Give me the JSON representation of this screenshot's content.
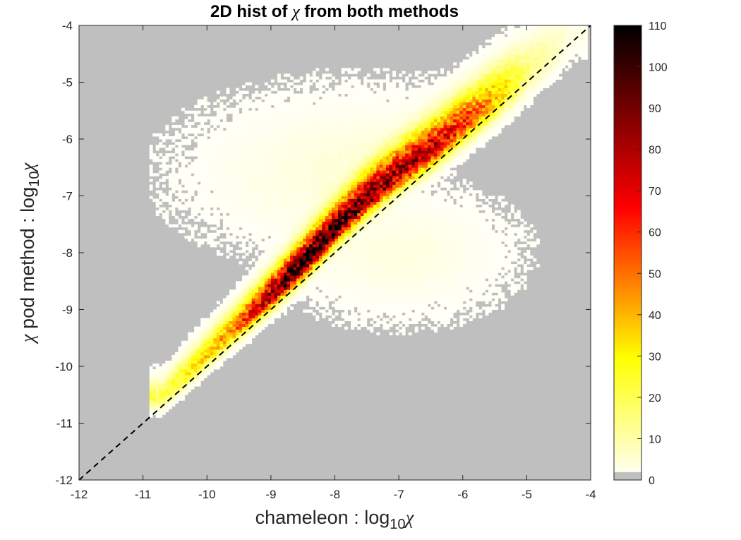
{
  "chart_data": {
    "type": "heatmap",
    "title_before": "2D hist of ",
    "title_symbol": "χ",
    "title_after": " from both methods",
    "xlabel_text": "chameleon : log",
    "xlabel_sub": "10",
    "xlabel_symbol": "χ",
    "ylabel_symbol": "χ",
    "ylabel_text": " pod method : log",
    "ylabel_sub": "10",
    "ylabel_symbol_end": "χ",
    "xlim": [
      -12,
      -4
    ],
    "ylim": [
      -12,
      -4
    ],
    "xticks": [
      -12,
      -11,
      -10,
      -9,
      -8,
      -7,
      -6,
      -5,
      -4
    ],
    "yticks": [
      -12,
      -11,
      -10,
      -9,
      -8,
      -7,
      -6,
      -5,
      -4
    ],
    "xtick_labels": [
      "-12",
      "-11",
      "-10",
      "-9",
      "-8",
      "-7",
      "-6",
      "-5",
      "-4"
    ],
    "ytick_labels": [
      "-12",
      "-11",
      "-10",
      "-9",
      "-8",
      "-7",
      "-6",
      "-5",
      "-4"
    ],
    "bin_width": 0.05,
    "background_color": "#bfbfbf",
    "colormap": "hot (reversed)",
    "colorbar": {
      "min": 0,
      "max": 110,
      "ticks": [
        0,
        10,
        20,
        30,
        40,
        50,
        60,
        70,
        80,
        90,
        100,
        110
      ],
      "tick_labels": [
        "0",
        "10",
        "20",
        "30",
        "40",
        "50",
        "60",
        "70",
        "80",
        "90",
        "100",
        "110"
      ],
      "zero_color": "#bfbfbf"
    },
    "density_model": {
      "ridge_points": [
        [
          -10.7,
          -10.55
        ],
        [
          -10.0,
          -9.8
        ],
        [
          -9.0,
          -8.75
        ],
        [
          -8.5,
          -8.2
        ],
        [
          -8.0,
          -7.6
        ],
        [
          -7.5,
          -7.05
        ],
        [
          -7.0,
          -6.6
        ],
        [
          -6.5,
          -6.2
        ],
        [
          -6.0,
          -5.75
        ],
        [
          -5.5,
          -5.3
        ],
        [
          -5.0,
          -4.85
        ],
        [
          -4.2,
          -4.1
        ]
      ],
      "peak_counts": [
        [
          -10.7,
          20
        ],
        [
          -10.3,
          30
        ],
        [
          -9.6,
          45
        ],
        [
          -9.0,
          85
        ],
        [
          -8.5,
          110
        ],
        [
          -8.0,
          95
        ],
        [
          -7.5,
          88
        ],
        [
          -7.0,
          80
        ],
        [
          -6.5,
          75
        ],
        [
          -6.0,
          60
        ],
        [
          -5.5,
          40
        ],
        [
          -5.0,
          15
        ],
        [
          -4.3,
          3
        ]
      ],
      "ridge_spread_min": 0.12,
      "ridge_spread_max": 0.24,
      "upper_halo_center": [
        -7.6,
        -6.6
      ],
      "lower_halo_center": [
        -7.0,
        -8.0
      ],
      "x_extent": [
        -10.9,
        -4.05
      ]
    },
    "reference_line": {
      "type": "dashed",
      "from": [
        -12,
        -12
      ],
      "to": [
        -4,
        -4
      ],
      "color": "#000000"
    }
  }
}
